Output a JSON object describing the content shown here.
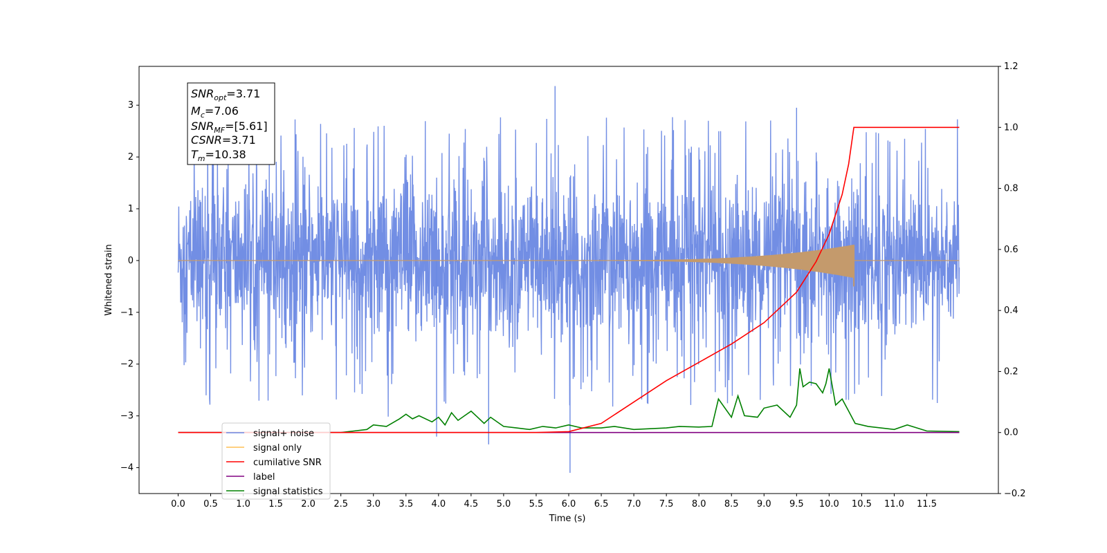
{
  "chart_data": {
    "type": "line",
    "xlabel": "Time (s)",
    "ylabel": "Whitened strain",
    "xlim": [
      -0.6,
      12.6
    ],
    "ylim": [
      -4.5,
      3.75
    ],
    "y2lim": [
      -0.2,
      1.2
    ],
    "x_ticks": [
      "0.0",
      "0.5",
      "1.0",
      "1.5",
      "2.0",
      "2.5",
      "3.0",
      "3.5",
      "4.0",
      "4.5",
      "5.0",
      "5.5",
      "6.0",
      "6.5",
      "7.0",
      "7.5",
      "8.0",
      "8.5",
      "9.0",
      "9.5",
      "10.0",
      "10.5",
      "11.0",
      "11.5"
    ],
    "y_ticks": [
      "3",
      "2",
      "1",
      "0",
      "−1",
      "−2",
      "−3",
      "−4"
    ],
    "y2_ticks": [
      "1.2",
      "1.0",
      "0.8",
      "0.6",
      "0.4",
      "0.2",
      "0.0",
      "−0.2"
    ],
    "legend_position": "lower-left",
    "annotation": {
      "snr_opt": {
        "sym": "SNR",
        "sub": "opt",
        "value": "=3.71"
      },
      "mc": {
        "sym": "M",
        "sub": "c",
        "value": "=7.06"
      },
      "snr_mf": {
        "sym": "SNR",
        "sub": "MF",
        "value": "=[5.61]"
      },
      "csnr": {
        "sym": "CSNR",
        "sub": "",
        "value": "=3.71"
      },
      "tm": {
        "sym": "T",
        "sub": "m",
        "value": "=10.38"
      }
    },
    "series": [
      {
        "name": "signal+ noise",
        "color": "#6a88e3",
        "axis": "left",
        "description_range": [
          0.0,
          12.0
        ],
        "envelope_typical": [
          -1.8,
          2.1
        ],
        "peaks": [
          [
            5.79,
            3.37
          ],
          [
            6.02,
            -4.1
          ],
          [
            1.4,
            3.05
          ],
          [
            9.5,
            2.95
          ],
          [
            3.97,
            -3.4
          ],
          [
            4.77,
            -3.55
          ]
        ]
      },
      {
        "name": "signal only",
        "color": "#c49a6c",
        "axis": "left",
        "chirp": {
          "start": 6.0,
          "merge": 10.38,
          "peak_amplitude": 0.3
        }
      },
      {
        "name": "cumilative SNR",
        "color": "#ff0000",
        "axis": "right",
        "x": [
          0.0,
          5.5,
          6.0,
          6.5,
          7.0,
          7.5,
          8.0,
          8.5,
          9.0,
          9.5,
          9.8,
          10.0,
          10.2,
          10.3,
          10.38,
          11.0,
          12.0
        ],
        "y": [
          0.0,
          0.0,
          0.003,
          0.03,
          0.1,
          0.17,
          0.23,
          0.29,
          0.36,
          0.46,
          0.56,
          0.65,
          0.78,
          0.88,
          1.0,
          1.0,
          1.0
        ]
      },
      {
        "name": "label",
        "color": "#800080",
        "axis": "right",
        "x": [
          0.0,
          12.0
        ],
        "y": [
          0.0,
          0.0
        ]
      },
      {
        "name": "signal statistics",
        "color": "#008000",
        "axis": "right",
        "x": [
          0.0,
          2.5,
          2.7,
          2.9,
          3.0,
          3.2,
          3.4,
          3.5,
          3.6,
          3.7,
          3.9,
          4.0,
          4.1,
          4.2,
          4.3,
          4.4,
          4.5,
          4.6,
          4.7,
          4.8,
          5.0,
          5.2,
          5.4,
          5.6,
          5.8,
          6.0,
          6.2,
          6.5,
          6.7,
          7.0,
          7.5,
          7.7,
          8.0,
          8.2,
          8.3,
          8.5,
          8.6,
          8.7,
          8.9,
          9.0,
          9.2,
          9.4,
          9.5,
          9.55,
          9.6,
          9.7,
          9.8,
          9.9,
          9.95,
          10.0,
          10.1,
          10.2,
          10.3,
          10.4,
          10.6,
          11.0,
          11.2,
          11.5,
          12.0
        ],
        "y": [
          0.0,
          0.0,
          0.005,
          0.01,
          0.025,
          0.02,
          0.045,
          0.06,
          0.045,
          0.055,
          0.035,
          0.05,
          0.025,
          0.065,
          0.04,
          0.055,
          0.07,
          0.05,
          0.03,
          0.05,
          0.02,
          0.015,
          0.01,
          0.02,
          0.015,
          0.025,
          0.015,
          0.015,
          0.02,
          0.01,
          0.015,
          0.02,
          0.018,
          0.02,
          0.11,
          0.05,
          0.12,
          0.055,
          0.05,
          0.08,
          0.09,
          0.05,
          0.09,
          0.21,
          0.15,
          0.165,
          0.16,
          0.13,
          0.16,
          0.21,
          0.09,
          0.11,
          0.07,
          0.03,
          0.02,
          0.01,
          0.025,
          0.005,
          0.003
        ]
      }
    ]
  }
}
